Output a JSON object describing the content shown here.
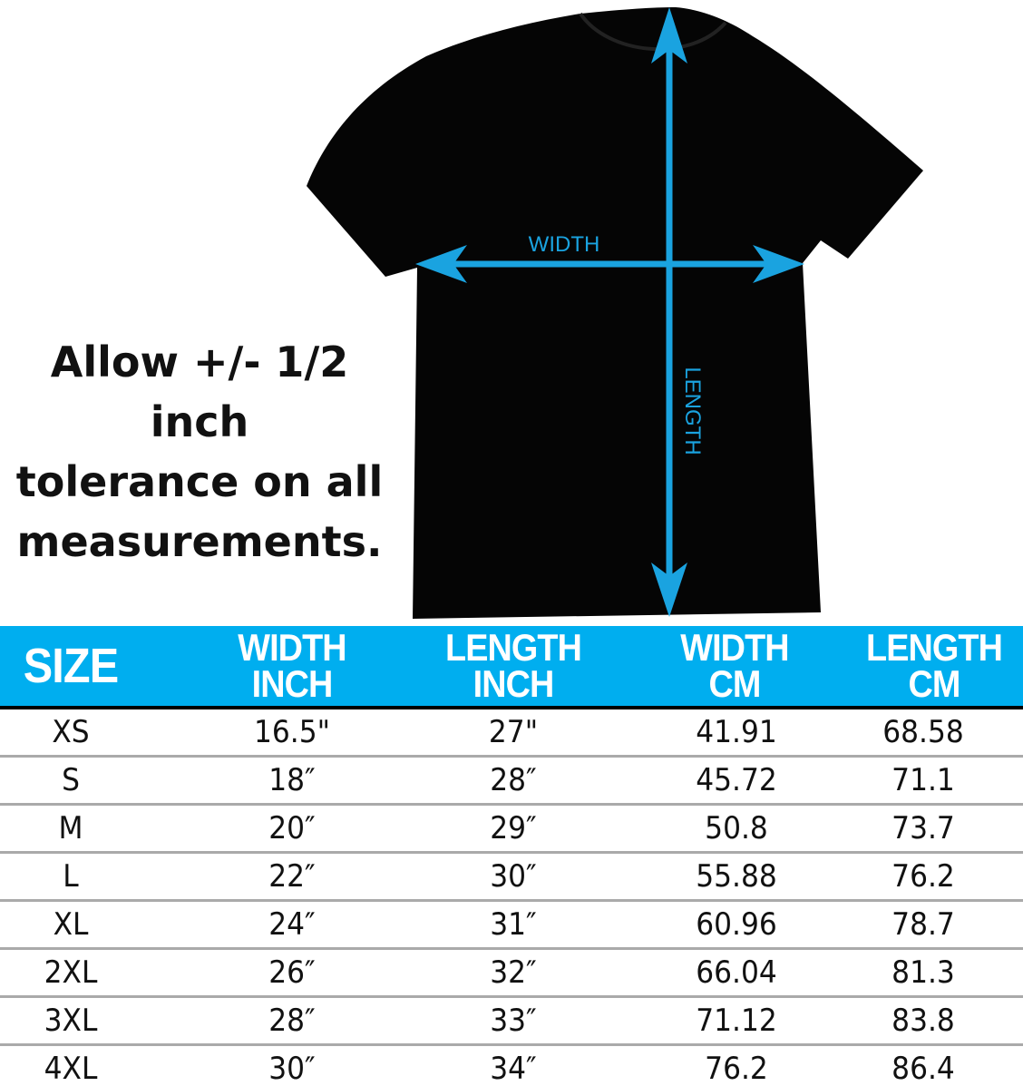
{
  "colors": {
    "accent": "#00aeef",
    "shirt": "#050505",
    "arrow": "#1aa3e0"
  },
  "diagram": {
    "width_label": "WIDTH",
    "length_label": "LENGTH"
  },
  "note": [
    "Allow +/- 1/2 inch",
    "tolerance on all",
    "measurements."
  ],
  "table": {
    "headers": [
      [
        "SIZE",
        ""
      ],
      [
        "WIDTH",
        "INCH"
      ],
      [
        "LENGTH",
        "INCH"
      ],
      [
        "WIDTH",
        "CM"
      ],
      [
        "LENGTH",
        "CM"
      ]
    ],
    "rows": [
      [
        "XS",
        "16.5\"",
        "27\"",
        "41.91",
        "68.58"
      ],
      [
        "S",
        "18″",
        "28″",
        "45.72",
        "71.1"
      ],
      [
        "M",
        "20″",
        "29″",
        "50.8",
        "73.7"
      ],
      [
        "L",
        "22″",
        "30″",
        "55.88",
        "76.2"
      ],
      [
        "XL",
        "24″",
        "31″",
        "60.96",
        "78.7"
      ],
      [
        "2XL",
        "26″",
        "32″",
        "66.04",
        "81.3"
      ],
      [
        "3XL",
        "28″",
        "33″",
        "71.12",
        "83.8"
      ],
      [
        "4XL",
        "30″",
        "34″",
        "76.2",
        "86.4"
      ]
    ]
  }
}
